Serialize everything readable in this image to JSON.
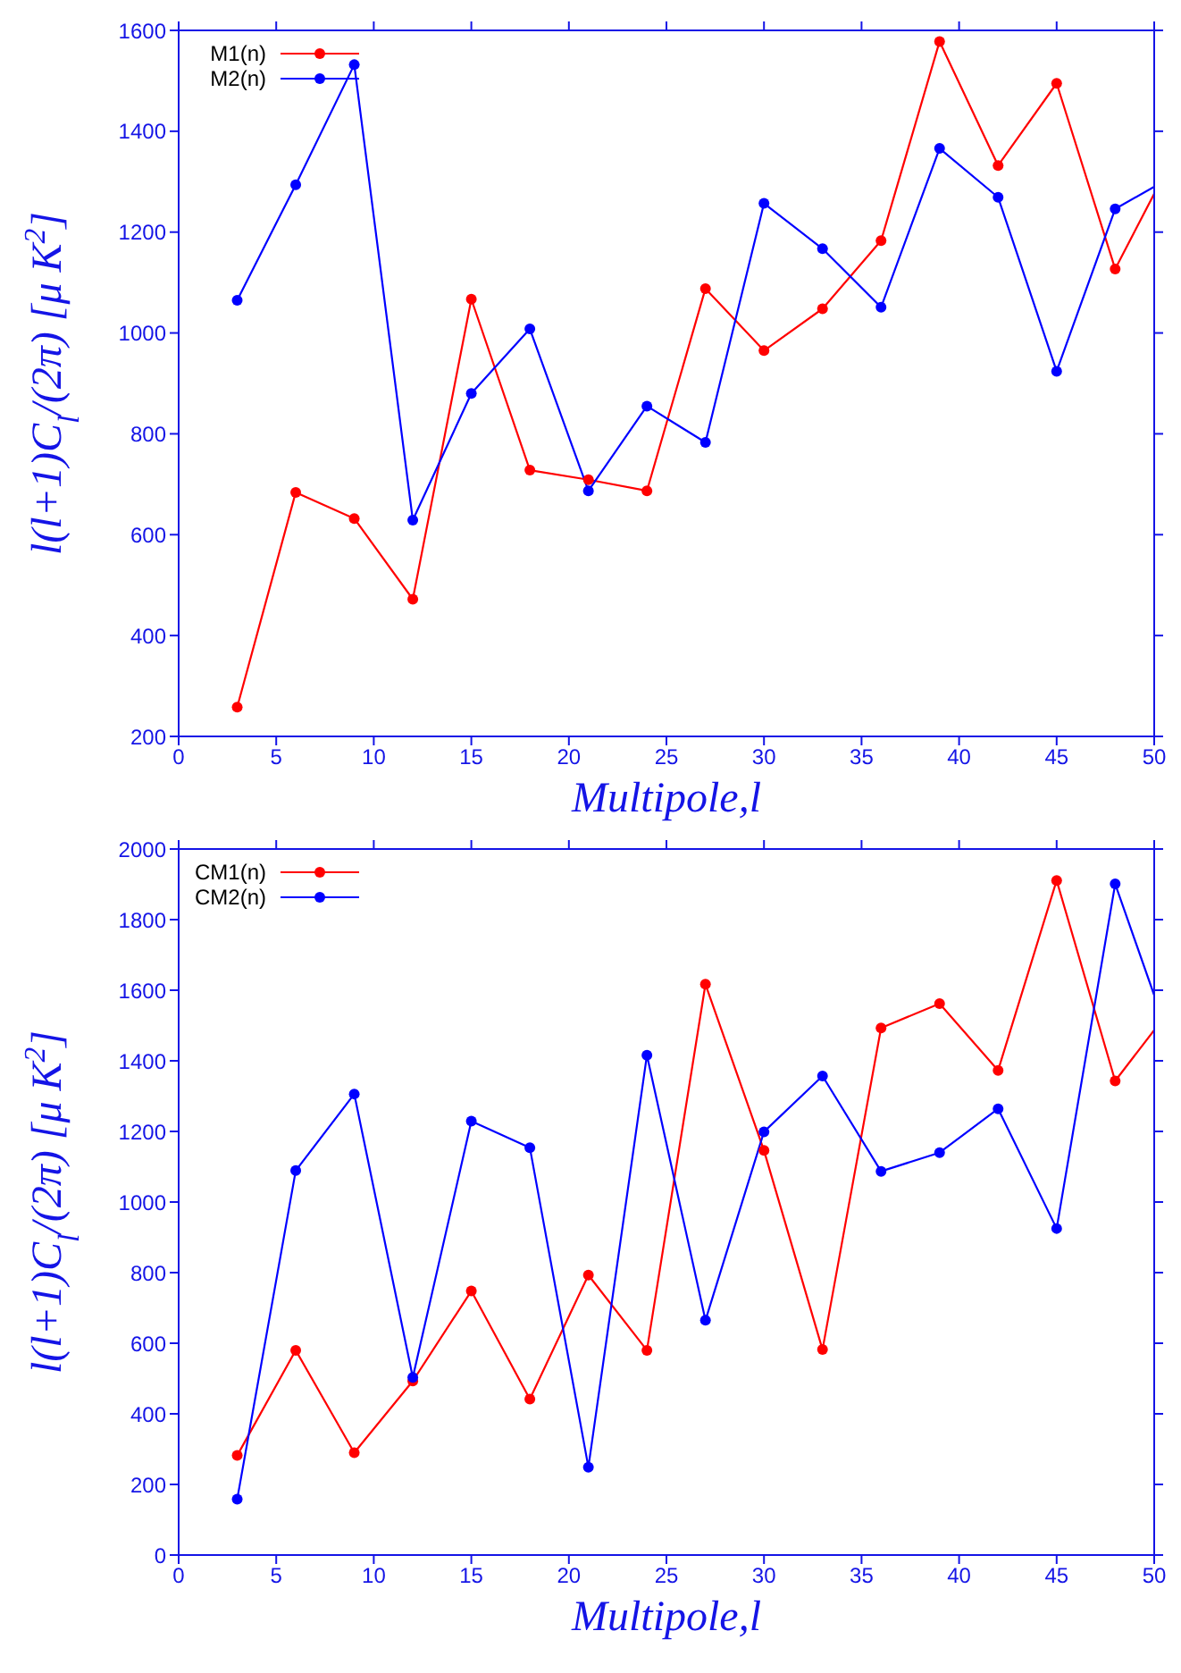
{
  "chart_data": [
    {
      "type": "line",
      "xlabel": "Multipole,l",
      "ylabel": "l(l+1)C$_{l}$/(2π) [μ K$^{2}$]",
      "x": [
        3,
        6,
        9,
        12,
        15,
        18,
        21,
        24,
        27,
        30,
        33,
        36,
        39,
        42,
        45,
        48,
        50
      ],
      "series": [
        {
          "name": "M1(n)",
          "color": "#ff0000",
          "values": [
            258,
            684,
            632,
            472,
            1067,
            728,
            709,
            687,
            1088,
            965,
            1048,
            1183,
            1578,
            1332,
            1495,
            1127,
            1276
          ]
        },
        {
          "name": "M2(n)",
          "color": "#0000ff",
          "values": [
            1065,
            1294,
            1532,
            629,
            880,
            1008,
            687,
            855,
            783,
            1257,
            1167,
            1051,
            1366,
            1269,
            924,
            1246,
            1290
          ]
        }
      ],
      "xlim": [
        0,
        50
      ],
      "xticks": [
        0,
        5,
        10,
        15,
        20,
        25,
        30,
        35,
        40,
        45,
        50
      ],
      "ylim": [
        200,
        1600
      ],
      "yticks": [
        200,
        400,
        600,
        800,
        1000,
        1200,
        1400,
        1600
      ],
      "legend": "top left",
      "marker": "circle",
      "grid": false
    },
    {
      "type": "line",
      "xlabel": "Multipole,l",
      "ylabel": "l(l+1)C$_{l}$/(2π) [μ K$^{2}$]",
      "x": [
        3,
        6,
        9,
        12,
        15,
        18,
        21,
        24,
        27,
        30,
        33,
        36,
        39,
        42,
        45,
        48,
        50
      ],
      "series": [
        {
          "name": "CM1(n)",
          "color": "#ff0000",
          "values": [
            282,
            580,
            290,
            493,
            748,
            442,
            793,
            580,
            1617,
            1146,
            582,
            1493,
            1562,
            1373,
            1911,
            1343,
            1487
          ]
        },
        {
          "name": "CM2(n)",
          "color": "#0000ff",
          "values": [
            158,
            1089,
            1306,
            503,
            1229,
            1154,
            249,
            1416,
            665,
            1199,
            1357,
            1087,
            1140,
            1264,
            925,
            1901,
            1586
          ]
        }
      ],
      "xlim": [
        0,
        50
      ],
      "xticks": [
        0,
        5,
        10,
        15,
        20,
        25,
        30,
        35,
        40,
        45,
        50
      ],
      "ylim": [
        0,
        2000
      ],
      "yticks": [
        0,
        200,
        400,
        600,
        800,
        1000,
        1200,
        1400,
        1600,
        1800,
        2000
      ],
      "legend": "top left",
      "marker": "circle",
      "grid": false
    }
  ]
}
